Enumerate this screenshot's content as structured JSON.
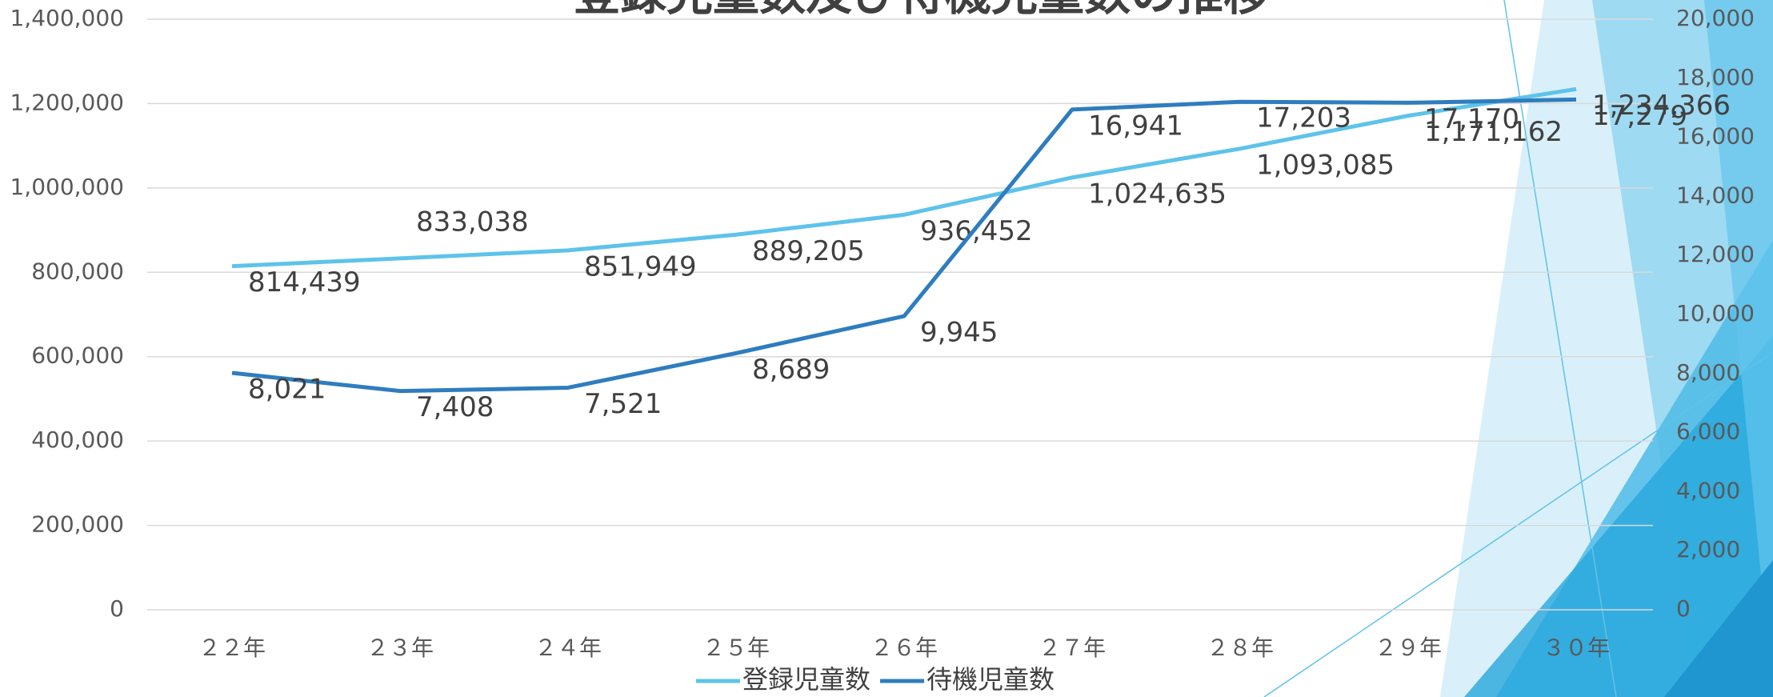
{
  "chart_data": {
    "type": "line",
    "title": "登録児童数及び待機児童数の推移",
    "categories": [
      "２２年",
      "２３年",
      "２４年",
      "２５年",
      "２６年",
      "２７年",
      "２８年",
      "２９年",
      "３０年"
    ],
    "series": [
      {
        "name": "登録児童数",
        "color": "#5ec3ea",
        "values": [
          814439,
          833038,
          851949,
          889205,
          936452,
          1024635,
          1093085,
          1171162,
          1234366
        ],
        "value_labels": [
          "814,439",
          "833,038",
          "851,949",
          "889,205",
          "936,452",
          "1,024,635",
          "1,093,085",
          "1,171,162",
          "1,234,366"
        ]
      },
      {
        "name": "待機児童数",
        "color": "#2e7dbf",
        "axis": "y2",
        "values": [
          8021,
          7408,
          7521,
          8689,
          9945,
          16941,
          17203,
          17170,
          17279
        ],
        "value_labels": [
          "8,021",
          "7,408",
          "7,521",
          "8,689",
          "9,945",
          "16,941",
          "17,203",
          "17,170",
          "17,279"
        ]
      }
    ],
    "ylim": [
      0,
      1400000
    ],
    "yticks": [
      0,
      {
        "value": 200000,
        "label": "200,000"
      },
      {
        "value": 400000,
        "label": "400,000"
      },
      {
        "value": 600000,
        "label": "600,000"
      },
      {
        "value": 800000,
        "label": "800,000"
      },
      {
        "value": 1000000,
        "label": "1,000,000"
      },
      {
        "value": 1200000,
        "label": "1,200,000"
      },
      {
        "value": 1400000,
        "label": "1,400,000"
      }
    ],
    "y2lim": [
      0,
      20000
    ],
    "y2ticks": [
      0,
      {
        "value": 2000,
        "label": "2,000"
      },
      {
        "value": 4000,
        "label": "4,000"
      },
      {
        "value": 6000,
        "label": "6,000"
      },
      {
        "value": 8000,
        "label": "8,000"
      },
      {
        "value": 10000,
        "label": "10,000"
      },
      {
        "value": 12000,
        "label": "12,000"
      },
      {
        "value": 14000,
        "label": "14,000"
      },
      {
        "value": 16000,
        "label": "16,000"
      },
      {
        "value": 18000,
        "label": "18,000"
      },
      {
        "value": 20000,
        "label": "20,000"
      }
    ],
    "grid": true,
    "legend": "bottom"
  }
}
